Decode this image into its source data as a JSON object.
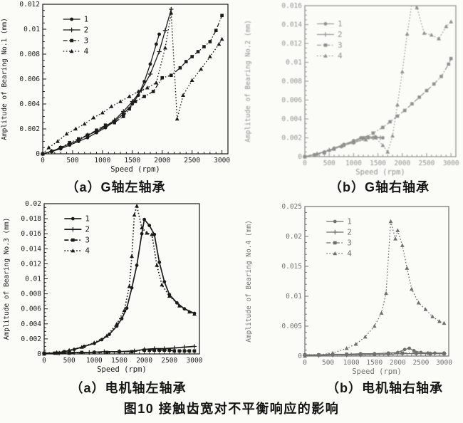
{
  "figure": {
    "caption": "图10 接触齿宽对不平衡响应的影响"
  },
  "captions": {
    "top_left": "（a）G轴左轴承",
    "top_right": "（b）G轴右轴承",
    "bottom_left": "（a）电机轴左轴承",
    "bottom_right": "（b）电机轴右轴承"
  },
  "ink_color": "#1b1b1b",
  "chart_data": [
    {
      "type": "line",
      "panel": "top-left",
      "xlabel": "Speed (rpm)",
      "ylabel": "Amplitude of Bearing No.1 (mm)",
      "xlim": [
        0,
        3000
      ],
      "ylim": [
        0,
        0.012
      ],
      "xframe_max": 3100,
      "grid": false,
      "xticks": [
        0,
        500,
        1000,
        1500,
        2000,
        2500,
        3000
      ],
      "xtick_labels": [
        "0",
        "500",
        "1000",
        "1500",
        "2000",
        "2500",
        "3000"
      ],
      "x_minor_step": 100,
      "yticks": [
        0,
        0.002,
        0.004,
        0.006,
        0.008,
        0.01,
        0.012
      ],
      "ytick_labels": [
        "0",
        "0.002",
        "0.004",
        "0.006",
        "0.008",
        "0.01",
        "0.012"
      ],
      "y_minor_step": 0.0005,
      "legend": {
        "position": "upper-left",
        "fx": 0.11,
        "fy": 0.1
      },
      "series": [
        {
          "name": "1",
          "line": "solid",
          "marker": "circle",
          "x": [
            0,
            150,
            300,
            450,
            600,
            750,
            900,
            1050,
            1200,
            1350,
            1500,
            1600,
            1700,
            1800,
            1900,
            1950
          ],
          "y": [
            0,
            0.0002,
            0.0004,
            0.0007,
            0.001,
            0.0013,
            0.0017,
            0.0021,
            0.0026,
            0.0032,
            0.004,
            0.0047,
            0.0058,
            0.0072,
            0.0088,
            0.0096
          ]
        },
        {
          "name": "2",
          "line": "solid",
          "marker": "plus",
          "x": [
            0,
            150,
            300,
            450,
            600,
            750,
            900,
            1050,
            1200,
            1350,
            1500,
            1650,
            1800,
            1950,
            2050,
            2150
          ],
          "y": [
            0,
            0.0002,
            0.0005,
            0.0008,
            0.0011,
            0.0015,
            0.0018,
            0.0022,
            0.0027,
            0.0034,
            0.0042,
            0.0051,
            0.0064,
            0.0082,
            0.0099,
            0.0116
          ]
        },
        {
          "name": "3",
          "line": "dashdot",
          "marker": "square",
          "x": [
            0,
            150,
            300,
            450,
            600,
            750,
            900,
            1050,
            1200,
            1350,
            1450,
            1550,
            1700,
            1850,
            2000,
            2150,
            2300,
            2400,
            2500,
            2600,
            2700,
            2800,
            2900,
            3000
          ],
          "y": [
            0,
            0.0002,
            0.0005,
            0.0009,
            0.0012,
            0.0015,
            0.0019,
            0.0023,
            0.0025,
            0.003,
            0.0036,
            0.0042,
            0.0046,
            0.005,
            0.0061,
            0.0063,
            0.0069,
            0.0074,
            0.0078,
            0.0082,
            0.0086,
            0.009,
            0.0099,
            0.0111
          ]
        },
        {
          "name": "4",
          "line": "dotted",
          "marker": "triangle",
          "x": [
            0,
            100,
            250,
            400,
            550,
            700,
            850,
            1000,
            1150,
            1300,
            1450,
            1600,
            1750,
            1900,
            2050,
            2150,
            2250,
            2350,
            2500,
            2650,
            2800,
            2950,
            3000
          ],
          "y": [
            0,
            0.0005,
            0.001,
            0.0016,
            0.002,
            0.0024,
            0.0029,
            0.0033,
            0.0038,
            0.0042,
            0.0046,
            0.005,
            0.0053,
            0.0057,
            0.0085,
            0.0113,
            0.0028,
            0.0047,
            0.0059,
            0.0068,
            0.0078,
            0.0088,
            0.0092
          ]
        }
      ]
    },
    {
      "type": "line",
      "panel": "top-right",
      "xlabel": "Speed (rpm)",
      "ylabel": "Amplitude of Bearing No.2 (mm)",
      "xlim": [
        0,
        3000
      ],
      "ylim": [
        0,
        0.016
      ],
      "xframe_max": 3100,
      "grid": false,
      "xticks": [
        0,
        500,
        1000,
        1500,
        2000,
        2500,
        3000
      ],
      "xtick_labels": [
        "0",
        "500",
        "1000",
        "1500",
        "2000",
        "2500",
        "3000"
      ],
      "x_minor_step": 100,
      "yticks": [
        0,
        0.002,
        0.004,
        0.006,
        0.008,
        0.01,
        0.012,
        0.014,
        0.016
      ],
      "ytick_labels": [
        "0",
        "0.002",
        "0.004",
        "0.006",
        "0.008",
        "0.01",
        "0.012",
        "0.014",
        "0.016"
      ],
      "y_minor_step": 0.0005,
      "legend": {
        "position": "upper-left",
        "fx": 0.08,
        "fy": 0.12
      },
      "series": [
        {
          "name": "1",
          "line": "solid",
          "marker": "circle",
          "x": [
            0,
            200,
            400,
            600,
            800,
            1000,
            1150,
            1300,
            1450,
            1600
          ],
          "y": [
            0,
            0.0002,
            0.0005,
            0.0009,
            0.0013,
            0.0017,
            0.002,
            0.0021,
            0.0021,
            0.002
          ]
        },
        {
          "name": "2",
          "line": "solid",
          "marker": "plus",
          "x": [
            0,
            250,
            500,
            750,
            1000,
            1250,
            1400,
            1550
          ],
          "y": [
            0,
            0.0003,
            0.0007,
            0.0011,
            0.0015,
            0.0019,
            0.002,
            0.002
          ]
        },
        {
          "name": "3",
          "line": "dashdot",
          "marker": "square",
          "x": [
            0,
            200,
            400,
            600,
            800,
            1000,
            1200,
            1400,
            1600,
            1750,
            1900,
            2050,
            2200,
            2350,
            2500,
            2650,
            2800,
            2950,
            3000
          ],
          "y": [
            0,
            0.0002,
            0.0004,
            0.0008,
            0.0012,
            0.0016,
            0.002,
            0.0025,
            0.0031,
            0.0037,
            0.0043,
            0.0049,
            0.0056,
            0.0063,
            0.007,
            0.0077,
            0.0085,
            0.0098,
            0.0104
          ]
        },
        {
          "name": "4",
          "line": "dotted",
          "marker": "triangle",
          "x": [
            0,
            250,
            500,
            750,
            1000,
            1250,
            1450,
            1600,
            1700,
            1800,
            1900,
            2000,
            2100,
            2200,
            2300,
            2450,
            2600,
            2750,
            2900,
            3000
          ],
          "y": [
            0,
            0.0003,
            0.0007,
            0.0011,
            0.0015,
            0.0018,
            0.002,
            0.0012,
            0.0005,
            0.0022,
            0.0055,
            0.009,
            0.013,
            0.0163,
            0.0158,
            0.0131,
            0.0129,
            0.0125,
            0.0138,
            0.0143
          ]
        }
      ]
    },
    {
      "type": "line",
      "panel": "bottom-left",
      "xlabel": "Speed (rpm)",
      "ylabel": "Amplitude of Bearing No.3 (mm)",
      "xlim": [
        0,
        3000
      ],
      "ylim": [
        0,
        0.02
      ],
      "xframe_max": 3100,
      "grid": false,
      "xticks": [
        0,
        500,
        1000,
        1500,
        2000,
        2500,
        3000
      ],
      "xtick_labels": [
        "0",
        "500",
        "1000",
        "1500",
        "2000",
        "2500",
        "3000"
      ],
      "x_minor_step": 100,
      "yticks": [
        0,
        0.002,
        0.004,
        0.006,
        0.008,
        0.01,
        0.012,
        0.014,
        0.016,
        0.018,
        0.02
      ],
      "ytick_labels": [
        "0",
        "0.002",
        "0.004",
        "0.006",
        "0.008",
        "0.01",
        "0.012",
        "0.014",
        "0.016",
        "0.018",
        "0.02"
      ],
      "y_minor_step": 0.0005,
      "legend": {
        "position": "upper-left",
        "fx": 0.13,
        "fy": 0.1
      },
      "series": [
        {
          "name": "1",
          "line": "solid",
          "marker": "circle",
          "x": [
            0,
            200,
            400,
            600,
            800,
            1000,
            1150,
            1300,
            1450,
            1550,
            1650,
            1750,
            1850,
            1950,
            2000,
            2100,
            2200,
            2300,
            2400,
            2500,
            2650,
            2800,
            3000
          ],
          "y": [
            0,
            0.0001,
            0.0003,
            0.0006,
            0.001,
            0.0014,
            0.0019,
            0.0026,
            0.0037,
            0.0047,
            0.0061,
            0.0088,
            0.0118,
            0.016,
            0.0179,
            0.0171,
            0.0159,
            0.0122,
            0.0096,
            0.0079,
            0.0068,
            0.006,
            0.0054
          ]
        },
        {
          "name": "2",
          "line": "solid",
          "marker": "plus",
          "x": [
            0,
            300,
            600,
            900,
            1200,
            1500,
            1800,
            2000,
            2200,
            2400,
            2600,
            2800,
            3000
          ],
          "y": [
            0.0001,
            0.0001,
            0.0002,
            0.0002,
            0.0003,
            0.0003,
            0.0004,
            0.0006,
            0.0007,
            0.0007,
            0.0008,
            0.0009,
            0.001
          ]
        },
        {
          "name": "3",
          "line": "dashdot",
          "marker": "square",
          "x": [
            0,
            250,
            500,
            750,
            1000,
            1250,
            1500,
            1750,
            2000,
            2100,
            2200,
            2300,
            2400,
            2500,
            2600,
            2700,
            2800,
            2900,
            3000
          ],
          "y": [
            0.0001,
            0.0001,
            0.0001,
            0.0002,
            0.0002,
            0.0002,
            0.0003,
            0.0003,
            0.0005,
            0.0005,
            0.0005,
            0.0005,
            0.0005,
            0.0005,
            0.0004,
            0.0004,
            0.0004,
            0.0004,
            0.0004
          ]
        },
        {
          "name": "4",
          "line": "dotted",
          "marker": "triangle",
          "x": [
            0,
            250,
            500,
            750,
            1000,
            1250,
            1450,
            1600,
            1700,
            1750,
            1800,
            1850,
            1950,
            2050,
            2150,
            2250,
            2350,
            2500,
            2700,
            2900,
            3000
          ],
          "y": [
            0,
            0.0002,
            0.0005,
            0.0009,
            0.0015,
            0.0024,
            0.004,
            0.0058,
            0.009,
            0.013,
            0.0185,
            0.0197,
            0.0168,
            0.0161,
            0.0159,
            0.0118,
            0.0092,
            0.0077,
            0.0064,
            0.0056,
            0.0053
          ]
        }
      ]
    },
    {
      "type": "line",
      "panel": "bottom-right",
      "xlabel": "Speed (rpm)",
      "ylabel": "Amplitude of Bearing No.4 (mm)",
      "xlim": [
        0,
        3000
      ],
      "ylim": [
        0,
        0.025
      ],
      "xframe_max": 3100,
      "grid": false,
      "xticks": [
        0,
        500,
        1000,
        1500,
        2000,
        2500,
        3000
      ],
      "xtick_labels": [
        "0",
        "500",
        "1000",
        "1500",
        "2000",
        "2500",
        "3000"
      ],
      "x_minor_step": 100,
      "yticks": [
        0,
        0.005,
        0.01,
        0.015,
        0.02,
        0.025
      ],
      "ytick_labels": [
        "0",
        "0.005",
        "0.01",
        "0.015",
        "0.02",
        "0.025"
      ],
      "y_minor_step": 0.001,
      "legend": {
        "position": "upper-left",
        "fx": 0.15,
        "fy": 0.1
      },
      "series": [
        {
          "name": "1",
          "line": "solid",
          "marker": "circle",
          "x": [
            0,
            300,
            600,
            900,
            1200,
            1500,
            1800,
            2000,
            2150,
            2250,
            2350,
            2500,
            2650,
            2800,
            3000
          ],
          "y": [
            0.0002,
            0.0002,
            0.0003,
            0.0003,
            0.0004,
            0.0004,
            0.0005,
            0.0006,
            0.0011,
            0.0013,
            0.0009,
            0.0006,
            0.0005,
            0.0005,
            0.0005
          ]
        },
        {
          "name": "2",
          "line": "solid",
          "marker": "plus",
          "x": [
            0,
            300,
            600,
            900,
            1200,
            1500,
            1800,
            2100,
            2400,
            2700,
            3000
          ],
          "y": [
            0.0001,
            0.0001,
            0.0002,
            0.0002,
            0.0002,
            0.0003,
            0.0003,
            0.0004,
            0.0004,
            0.0004,
            0.0004
          ]
        },
        {
          "name": "3",
          "line": "dashdot",
          "marker": "square",
          "x": [
            0,
            300,
            600,
            900,
            1200,
            1500,
            1800,
            2100,
            2400,
            2700,
            3000
          ],
          "y": [
            0.0002,
            0.0002,
            0.0002,
            0.0003,
            0.0003,
            0.0003,
            0.0004,
            0.0005,
            0.0005,
            0.0004,
            0.0004
          ]
        },
        {
          "name": "4",
          "line": "dotted",
          "marker": "triangle",
          "x": [
            0,
            300,
            600,
            900,
            1100,
            1300,
            1500,
            1650,
            1750,
            1850,
            1950,
            2000,
            2100,
            2200,
            2300,
            2450,
            2600,
            2750,
            2900,
            3000
          ],
          "y": [
            0,
            0.0002,
            0.0005,
            0.0013,
            0.002,
            0.0032,
            0.005,
            0.0072,
            0.0105,
            0.0225,
            0.0196,
            0.021,
            0.0185,
            0.0147,
            0.0112,
            0.0089,
            0.0078,
            0.0066,
            0.0058,
            0.0055
          ]
        }
      ]
    }
  ]
}
